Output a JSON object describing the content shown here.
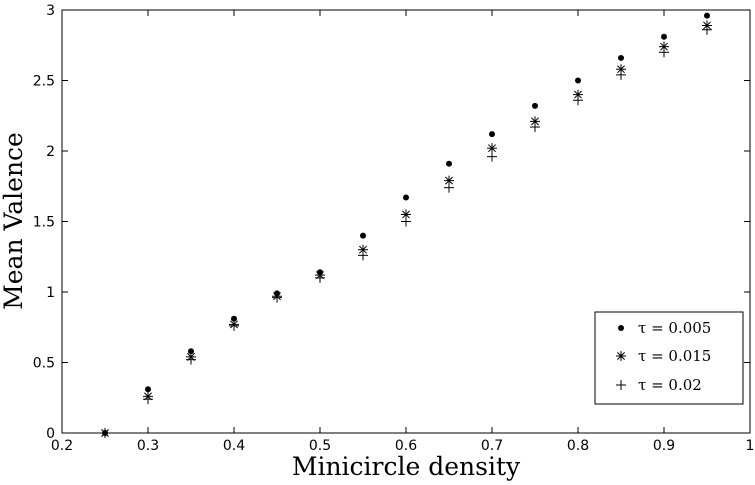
{
  "chart_data": {
    "type": "scatter",
    "title": "",
    "xlabel": "Minicircle density",
    "ylabel": "Mean Valence",
    "xlim": [
      0.2,
      1
    ],
    "ylim": [
      0,
      3
    ],
    "xticks": [
      "0.2",
      "0.3",
      "0.4",
      "0.5",
      "0.6",
      "0.7",
      "0.8",
      "0.9",
      "1"
    ],
    "yticks": [
      "0",
      "0.5",
      "1",
      "1.5",
      "2",
      "2.5",
      "3"
    ],
    "grid": false,
    "legend_position": "bottom-right",
    "series": [
      {
        "name": "τ = 0.005",
        "marker": "dot",
        "x": [
          0.25,
          0.3,
          0.35,
          0.4,
          0.45,
          0.5,
          0.55,
          0.6,
          0.65,
          0.7,
          0.75,
          0.8,
          0.85,
          0.9,
          0.95
        ],
        "y": [
          0.0,
          0.31,
          0.58,
          0.81,
          0.99,
          1.14,
          1.4,
          1.67,
          1.91,
          2.12,
          2.32,
          2.5,
          2.66,
          2.81,
          2.96
        ]
      },
      {
        "name": "τ = 0.015",
        "marker": "asterisk",
        "x": [
          0.25,
          0.3,
          0.35,
          0.4,
          0.45,
          0.5,
          0.55,
          0.6,
          0.65,
          0.7,
          0.75,
          0.8,
          0.85,
          0.9,
          0.95
        ],
        "y": [
          0.0,
          0.26,
          0.54,
          0.77,
          0.97,
          1.12,
          1.3,
          1.55,
          1.79,
          2.02,
          2.21,
          2.4,
          2.58,
          2.74,
          2.89
        ]
      },
      {
        "name": "τ = 0.02",
        "marker": "plus",
        "x": [
          0.25,
          0.3,
          0.35,
          0.4,
          0.45,
          0.5,
          0.55,
          0.6,
          0.65,
          0.7,
          0.75,
          0.8,
          0.85,
          0.9,
          0.95
        ],
        "y": [
          0.0,
          0.24,
          0.52,
          0.76,
          0.96,
          1.1,
          1.26,
          1.5,
          1.74,
          1.96,
          2.17,
          2.36,
          2.54,
          2.7,
          2.86
        ]
      }
    ]
  }
}
